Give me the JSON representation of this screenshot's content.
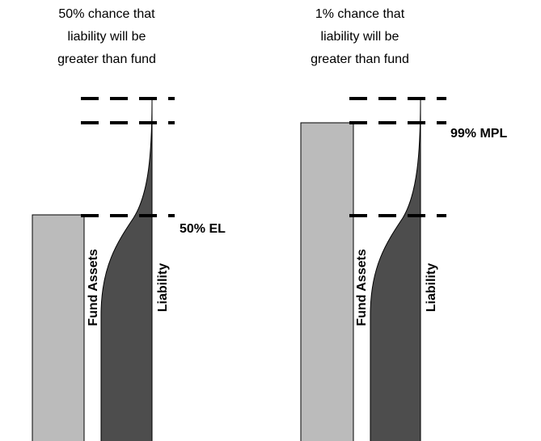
{
  "panels": [
    {
      "caption": [
        "50% chance that",
        "liability will be",
        "greater than fund"
      ],
      "fund_label": "Fund Assets",
      "liability_label": "Liability",
      "level_label": "50% EL"
    },
    {
      "caption": [
        "1% chance that",
        "liability will be",
        "greater than fund"
      ],
      "fund_label": "Fund Assets",
      "liability_label": "Liability",
      "level_label": "99% MPL"
    }
  ]
}
